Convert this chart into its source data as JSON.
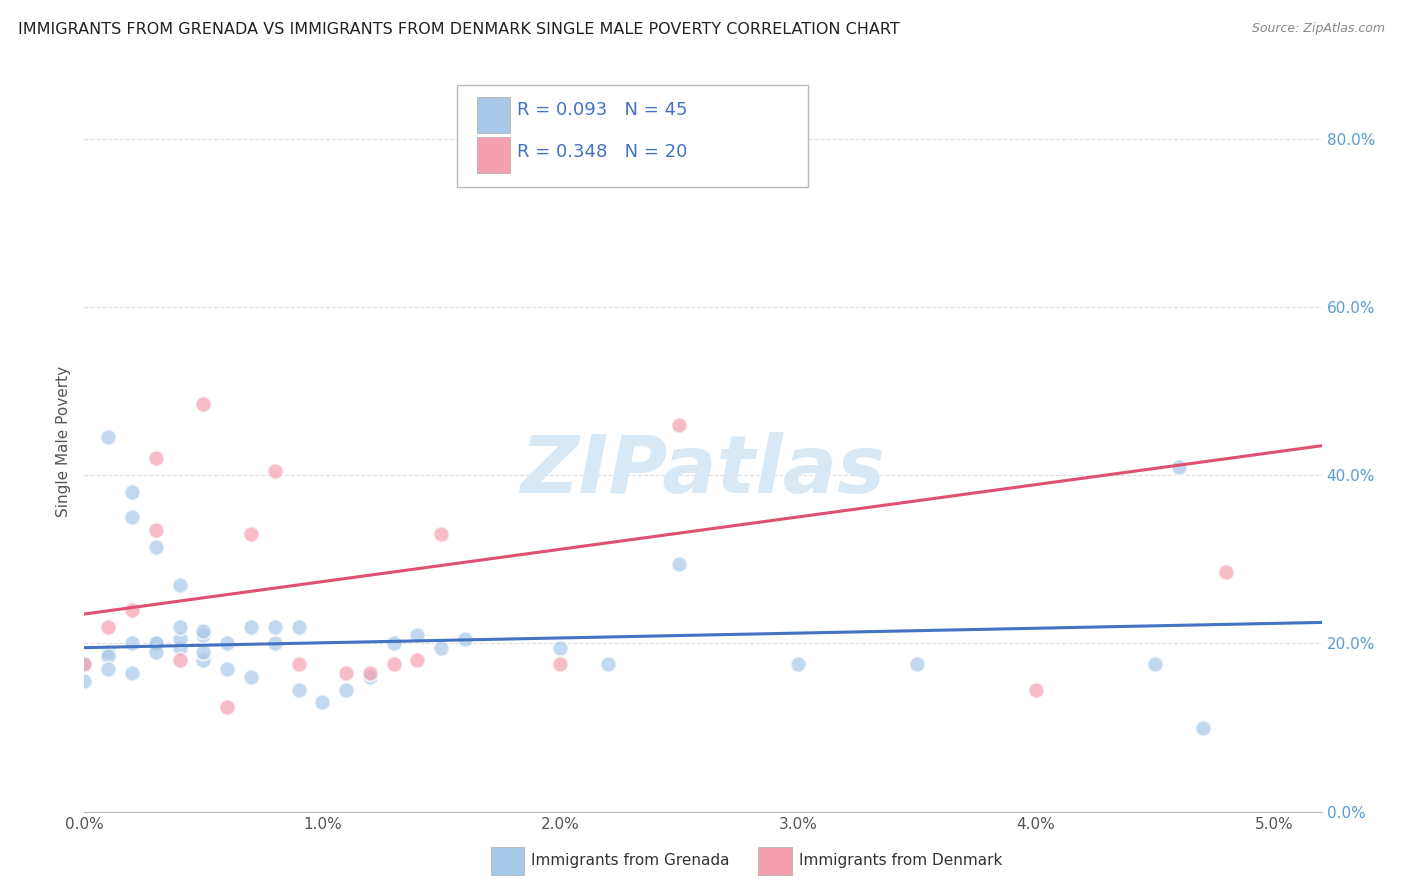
{
  "title": "IMMIGRANTS FROM GRENADA VS IMMIGRANTS FROM DENMARK SINGLE MALE POVERTY CORRELATION CHART",
  "source": "Source: ZipAtlas.com",
  "ylabel_label": "Single Male Poverty",
  "xlim": [
    0.0,
    0.052
  ],
  "ylim": [
    0.0,
    0.88
  ],
  "x_tick_vals": [
    0.0,
    0.01,
    0.02,
    0.03,
    0.04,
    0.05
  ],
  "x_tick_labels": [
    "0.0%",
    "1.0%",
    "2.0%",
    "3.0%",
    "4.0%",
    "5.0%"
  ],
  "y_tick_vals": [
    0.0,
    0.2,
    0.4,
    0.6,
    0.8
  ],
  "y_tick_labels": [
    "0.0%",
    "20.0%",
    "40.0%",
    "60.0%",
    "80.0%"
  ],
  "grenada_x": [
    0.001,
    0.002,
    0.003,
    0.004,
    0.005,
    0.006,
    0.007,
    0.008,
    0.009,
    0.001,
    0.002,
    0.002,
    0.003,
    0.003,
    0.004,
    0.004,
    0.005,
    0.005,
    0.0,
    0.001,
    0.0,
    0.001,
    0.002,
    0.003,
    0.004,
    0.005,
    0.006,
    0.007,
    0.008,
    0.009,
    0.01,
    0.011,
    0.012,
    0.013,
    0.014,
    0.015,
    0.016,
    0.02,
    0.022,
    0.025,
    0.03,
    0.035,
    0.045,
    0.046,
    0.047
  ],
  "grenada_y": [
    0.19,
    0.2,
    0.2,
    0.195,
    0.18,
    0.17,
    0.16,
    0.2,
    0.22,
    0.445,
    0.38,
    0.35,
    0.2,
    0.315,
    0.205,
    0.27,
    0.19,
    0.21,
    0.155,
    0.185,
    0.175,
    0.17,
    0.165,
    0.19,
    0.22,
    0.215,
    0.2,
    0.22,
    0.22,
    0.145,
    0.13,
    0.145,
    0.16,
    0.2,
    0.21,
    0.195,
    0.205,
    0.195,
    0.175,
    0.295,
    0.175,
    0.175,
    0.175,
    0.41,
    0.1
  ],
  "denmark_x": [
    0.0,
    0.001,
    0.002,
    0.003,
    0.003,
    0.004,
    0.005,
    0.006,
    0.007,
    0.008,
    0.009,
    0.011,
    0.012,
    0.013,
    0.014,
    0.015,
    0.02,
    0.025,
    0.04,
    0.048
  ],
  "denmark_y": [
    0.175,
    0.22,
    0.24,
    0.335,
    0.42,
    0.18,
    0.485,
    0.125,
    0.33,
    0.405,
    0.175,
    0.165,
    0.165,
    0.175,
    0.18,
    0.33,
    0.175,
    0.46,
    0.145,
    0.285
  ],
  "grenada_line_x": [
    0.0,
    0.052
  ],
  "grenada_line_y": [
    0.195,
    0.225
  ],
  "denmark_line_x": [
    0.0,
    0.052
  ],
  "denmark_line_y": [
    0.235,
    0.435
  ],
  "grenada_color": "#a8c8e8",
  "denmark_color": "#f4a0b0",
  "grenada_line_color": "#4472C4",
  "denmark_line_color": "#E05070",
  "background_color": "#FFFFFF",
  "watermark": "ZIPatlas",
  "watermark_color": "#D8E8F5",
  "legend_box_color": "#CCCCCC",
  "legend_grenada_color": "#a8c8e8",
  "legend_denmark_color": "#f4a0b0",
  "legend_text_color": "#4472C4",
  "legend_r1": "R = 0.093   N = 45",
  "legend_r2": "R = 0.348   N = 20",
  "bottom_legend_grenada": "Immigrants from Grenada",
  "bottom_legend_denmark": "Immigrants from Denmark"
}
